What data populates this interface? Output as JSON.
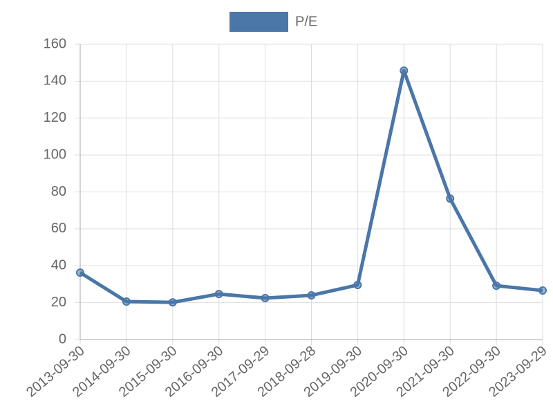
{
  "chart_data": {
    "type": "line",
    "categories": [
      "2013-09-30",
      "2014-09-30",
      "2015-09-30",
      "2016-09-30",
      "2017-09-29",
      "2018-09-28",
      "2019-09-30",
      "2020-09-30",
      "2021-09-30",
      "2022-09-30",
      "2023-09-29"
    ],
    "series": [
      {
        "name": "P/E",
        "color": "#4a76a8",
        "values": [
          36.3,
          20.6,
          20.2,
          24.7,
          22.5,
          24.0,
          29.6,
          145.7,
          76.4,
          29.2,
          26.6
        ]
      }
    ],
    "ylim": [
      0,
      160
    ],
    "yticks": [
      0,
      20,
      40,
      60,
      80,
      100,
      120,
      140,
      160
    ],
    "grid": true,
    "legend": "top"
  }
}
